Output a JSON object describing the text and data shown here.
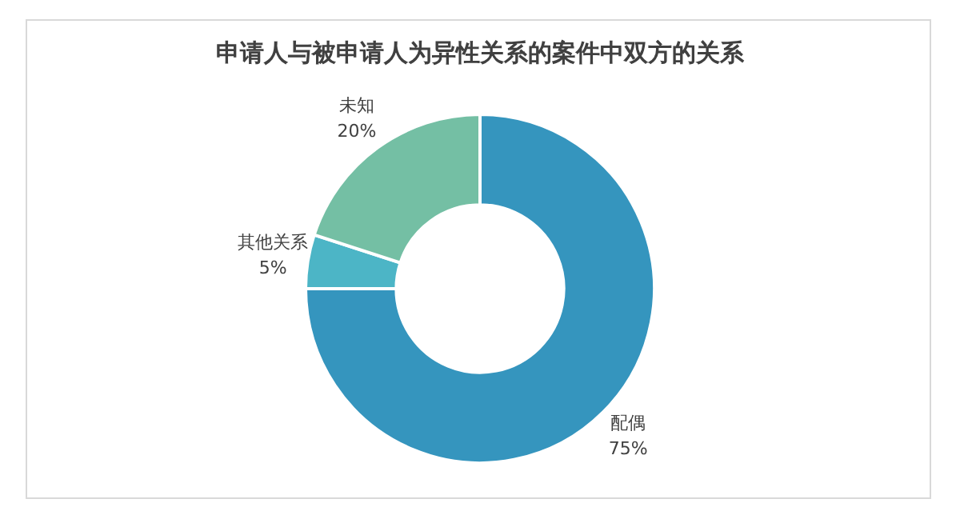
{
  "chart_data": {
    "type": "donut",
    "title": "申请人与被申请人为异性关系的案件中双方的关系",
    "categories": [
      "配偶",
      "其他关系",
      "未知"
    ],
    "values": [
      75,
      5,
      20
    ],
    "colors": [
      "#3595be",
      "#4cb5c6",
      "#74bfa4"
    ],
    "value_labels": [
      "75%",
      "5%",
      "20%"
    ],
    "legend": false
  }
}
